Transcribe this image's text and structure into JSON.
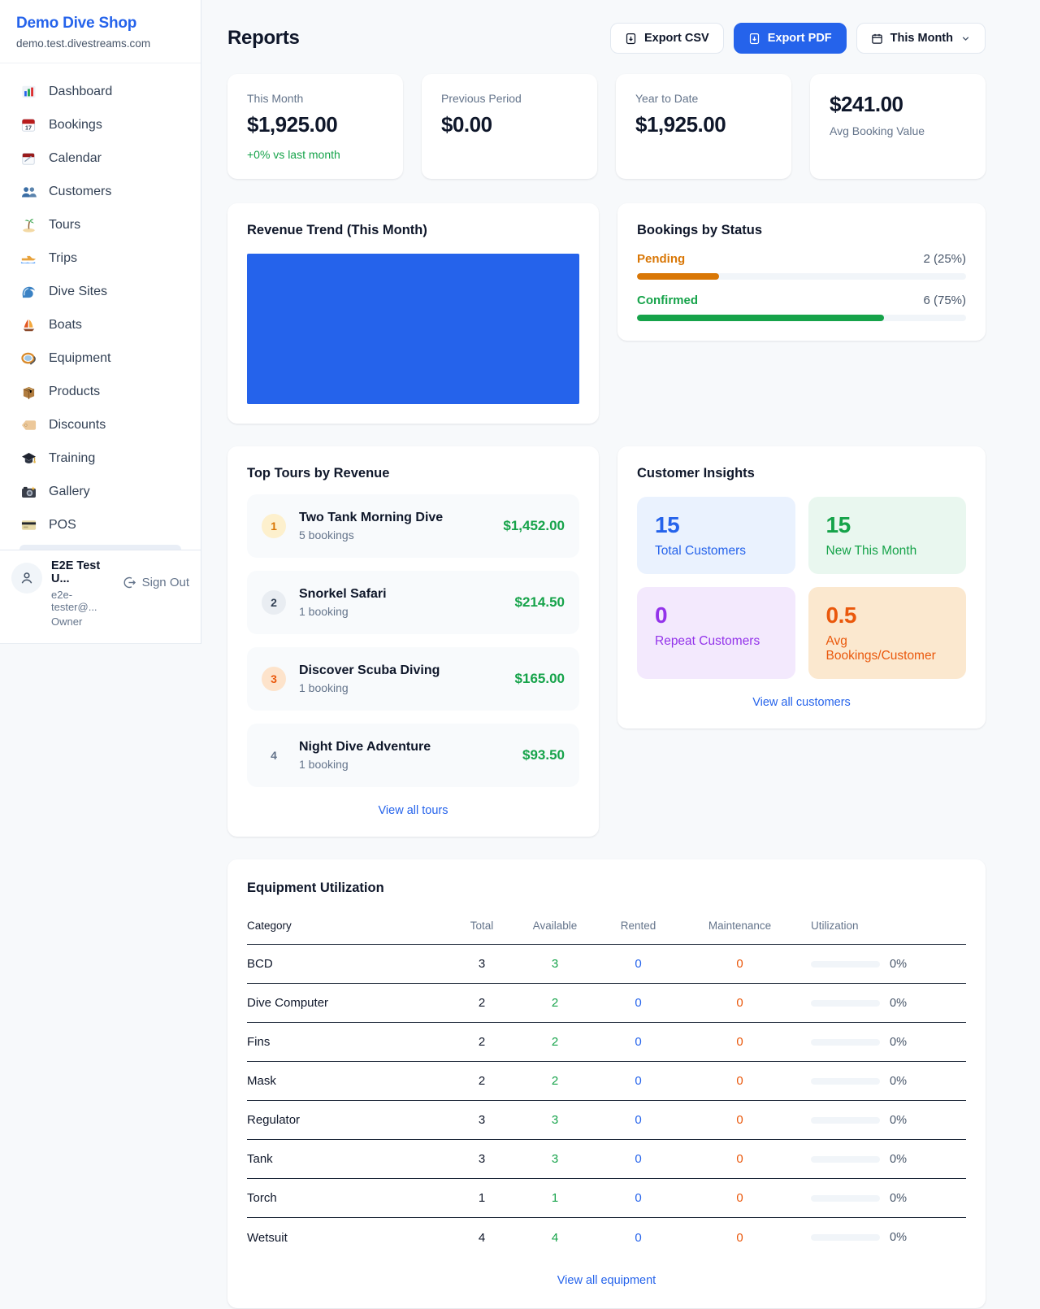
{
  "colors": {
    "accent_blue": "#2563eb",
    "green": "#16a34a",
    "pending_orange": "#d97706",
    "maintenance_orange": "#ea580c",
    "purple": "#9333ea",
    "chart_bar_blue": "#2563eb"
  },
  "sidebar": {
    "brand": {
      "name": "Demo Dive Shop",
      "domain": "demo.test.divestreams.com"
    },
    "nav": [
      {
        "icon": "bar-chart",
        "label": "Dashboard"
      },
      {
        "icon": "calendar-17",
        "label": "Bookings"
      },
      {
        "icon": "calendar-pad",
        "label": "Calendar"
      },
      {
        "icon": "people",
        "label": "Customers"
      },
      {
        "icon": "palm-island",
        "label": "Tours"
      },
      {
        "icon": "speedboat",
        "label": "Trips"
      },
      {
        "icon": "wave",
        "label": "Dive Sites"
      },
      {
        "icon": "sailboat",
        "label": "Boats"
      },
      {
        "icon": "dive-mask",
        "label": "Equipment"
      },
      {
        "icon": "package",
        "label": "Products"
      },
      {
        "icon": "price-tag",
        "label": "Discounts"
      },
      {
        "icon": "grad-cap",
        "label": "Training"
      },
      {
        "icon": "camera",
        "label": "Gallery"
      },
      {
        "icon": "credit-card",
        "label": "POS"
      }
    ],
    "user": {
      "name": "E2E Test U...",
      "email": "e2e-tester@...",
      "role": "Owner",
      "sign_out": "Sign Out"
    }
  },
  "header": {
    "title": "Reports",
    "export_csv": "Export CSV",
    "export_pdf": "Export PDF",
    "period": "This Month"
  },
  "stats": [
    {
      "label": "This Month",
      "value": "$1,925.00",
      "delta": "+0% vs last month"
    },
    {
      "label": "Previous Period",
      "value": "$0.00"
    },
    {
      "label": "Year to Date",
      "value": "$1,925.00"
    },
    {
      "label": "Avg Booking Value",
      "value": "$241.00"
    }
  ],
  "revenue_trend": {
    "title": "Revenue Trend (This Month)",
    "bar_color": "#2563eb"
  },
  "bookings_by_status": {
    "title": "Bookings by Status",
    "rows": [
      {
        "label": "Pending",
        "value": "2 (25%)",
        "pct": 25,
        "color": "#d97706"
      },
      {
        "label": "Confirmed",
        "value": "6 (75%)",
        "pct": 75,
        "color": "#16a34a"
      }
    ]
  },
  "top_tours": {
    "title": "Top Tours by Revenue",
    "items": [
      {
        "rank": "1",
        "name": "Two Tank Morning Dive",
        "bookings": "5 bookings",
        "amount": "$1,452.00"
      },
      {
        "rank": "2",
        "name": "Snorkel Safari",
        "bookings": "1 booking",
        "amount": "$214.50"
      },
      {
        "rank": "3",
        "name": "Discover Scuba Diving",
        "bookings": "1 booking",
        "amount": "$165.00"
      },
      {
        "rank": "4",
        "name": "Night Dive Adventure",
        "bookings": "1 booking",
        "amount": "$93.50"
      }
    ],
    "view_all": "View all tours"
  },
  "customer_insights": {
    "title": "Customer Insights",
    "tiles": [
      {
        "num": "15",
        "label": "Total Customers"
      },
      {
        "num": "15",
        "label": "New This Month"
      },
      {
        "num": "0",
        "label": "Repeat Customers"
      },
      {
        "num": "0.5",
        "label": "Avg Bookings/Customer"
      }
    ],
    "view_all": "View all customers"
  },
  "equipment": {
    "title": "Equipment Utilization",
    "columns": [
      "Category",
      "Total",
      "Available",
      "Rented",
      "Maintenance",
      "Utilization"
    ],
    "rows": [
      {
        "category": "BCD",
        "total": "3",
        "available": "3",
        "rented": "0",
        "maintenance": "0",
        "utilization": "0%",
        "pct": 0
      },
      {
        "category": "Dive Computer",
        "total": "2",
        "available": "2",
        "rented": "0",
        "maintenance": "0",
        "utilization": "0%",
        "pct": 0
      },
      {
        "category": "Fins",
        "total": "2",
        "available": "2",
        "rented": "0",
        "maintenance": "0",
        "utilization": "0%",
        "pct": 0
      },
      {
        "category": "Mask",
        "total": "2",
        "available": "2",
        "rented": "0",
        "maintenance": "0",
        "utilization": "0%",
        "pct": 0
      },
      {
        "category": "Regulator",
        "total": "3",
        "available": "3",
        "rented": "0",
        "maintenance": "0",
        "utilization": "0%",
        "pct": 0
      },
      {
        "category": "Tank",
        "total": "3",
        "available": "3",
        "rented": "0",
        "maintenance": "0",
        "utilization": "0%",
        "pct": 0
      },
      {
        "category": "Torch",
        "total": "1",
        "available": "1",
        "rented": "0",
        "maintenance": "0",
        "utilization": "0%",
        "pct": 0
      },
      {
        "category": "Wetsuit",
        "total": "4",
        "available": "4",
        "rented": "0",
        "maintenance": "0",
        "utilization": "0%",
        "pct": 0
      }
    ],
    "view_all": "View all equipment"
  }
}
